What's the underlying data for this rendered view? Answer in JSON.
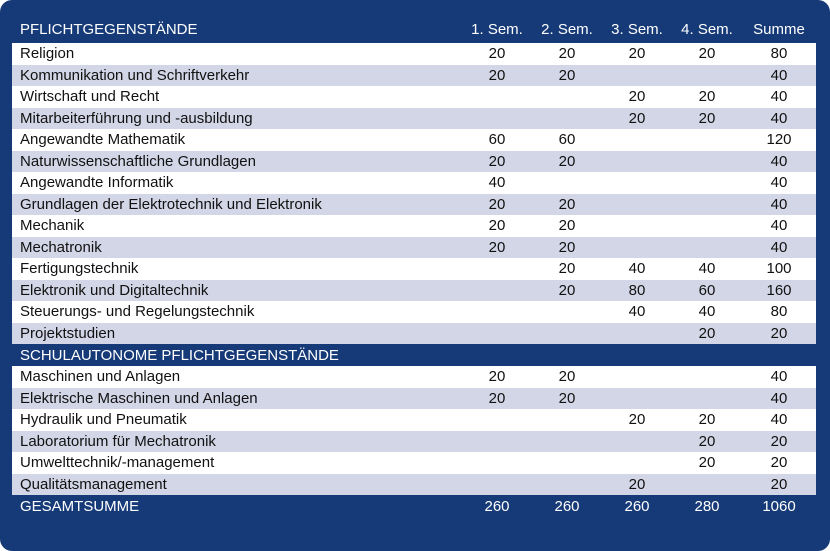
{
  "header": {
    "title": "PFLICHTGEGENSTÄNDE",
    "sem1": "1. Sem.",
    "sem2": "2. Sem.",
    "sem3": "3. Sem.",
    "sem4": "4. Sem.",
    "sum": "Summe"
  },
  "rows": [
    {
      "name": "Religion",
      "s1": "20",
      "s2": "20",
      "s3": "20",
      "s4": "20",
      "sum": "80"
    },
    {
      "name": "Kommunikation und Schriftverkehr",
      "s1": "20",
      "s2": "20",
      "s3": "",
      "s4": "",
      "sum": "40"
    },
    {
      "name": "Wirtschaft und Recht",
      "s1": "",
      "s2": "",
      "s3": "20",
      "s4": "20",
      "sum": "40"
    },
    {
      "name": "Mitarbeiterführung und -ausbildung",
      "s1": "",
      "s2": "",
      "s3": "20",
      "s4": "20",
      "sum": "40"
    },
    {
      "name": "Angewandte Mathematik",
      "s1": "60",
      "s2": "60",
      "s3": "",
      "s4": "",
      "sum": "120"
    },
    {
      "name": "Naturwissenschaftliche Grundlagen",
      "s1": "20",
      "s2": "20",
      "s3": "",
      "s4": "",
      "sum": "40"
    },
    {
      "name": "Angewandte Informatik",
      "s1": "40",
      "s2": "",
      "s3": "",
      "s4": "",
      "sum": "40"
    },
    {
      "name": "Grundlagen der Elektrotechnik und Elektronik",
      "s1": "20",
      "s2": "20",
      "s3": "",
      "s4": "",
      "sum": "40"
    },
    {
      "name": "Mechanik",
      "s1": "20",
      "s2": "20",
      "s3": "",
      "s4": "",
      "sum": "40"
    },
    {
      "name": "Mechatronik",
      "s1": "20",
      "s2": "20",
      "s3": "",
      "s4": "",
      "sum": "40"
    },
    {
      "name": "Fertigungstechnik",
      "s1": "",
      "s2": "20",
      "s3": "40",
      "s4": "40",
      "sum": "100"
    },
    {
      "name": "Elektronik und Digitaltechnik",
      "s1": "",
      "s2": "20",
      "s3": "80",
      "s4": "60",
      "sum": "160"
    },
    {
      "name": "Steuerungs- und Regelungstechnik",
      "s1": "",
      "s2": "",
      "s3": "40",
      "s4": "40",
      "sum": "80"
    },
    {
      "name": "Projektstudien",
      "s1": "",
      "s2": "",
      "s3": "",
      "s4": "20",
      "sum": "20"
    }
  ],
  "subheader": {
    "title": "SCHULAUTONOME PFLICHTGEGENSTÄNDE"
  },
  "rows2": [
    {
      "name": "Maschinen und Anlagen",
      "s1": "20",
      "s2": "20",
      "s3": "",
      "s4": "",
      "sum": "40"
    },
    {
      "name": "Elektrische Maschinen und Anlagen",
      "s1": "20",
      "s2": "20",
      "s3": "",
      "s4": "",
      "sum": "40"
    },
    {
      "name": "Hydraulik und Pneumatik",
      "s1": "",
      "s2": "",
      "s3": "20",
      "s4": "20",
      "sum": "40"
    },
    {
      "name": "Laboratorium für Mechatronik",
      "s1": "",
      "s2": "",
      "s3": "",
      "s4": "20",
      "sum": "20"
    },
    {
      "name": "Umwelttechnik/-management",
      "s1": "",
      "s2": "",
      "s3": "",
      "s4": "20",
      "sum": "20"
    },
    {
      "name": "Qualitätsmanagement",
      "s1": "",
      "s2": "",
      "s3": "20",
      "s4": "",
      "sum": "20"
    }
  ],
  "total": {
    "name": "GESAMTSUMME",
    "s1": "260",
    "s2": "260",
    "s3": "260",
    "s4": "280",
    "sum": "1060"
  },
  "colors": {
    "frame": "#163a77",
    "stripe": "#d3d6e6",
    "row": "#ffffff"
  }
}
